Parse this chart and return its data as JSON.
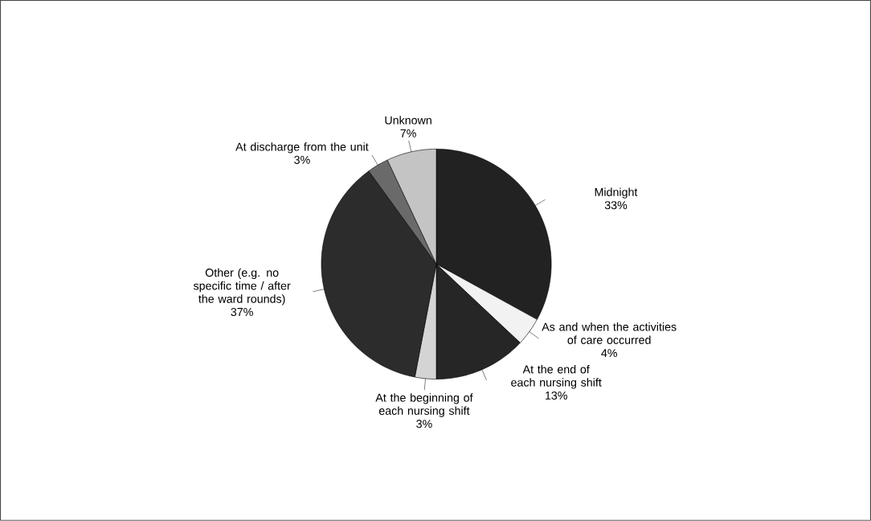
{
  "chart_data": {
    "type": "pie",
    "categories": [
      "Midnight",
      "As and when the activities of care occurred",
      "At the end of each nursing shift",
      "At the beginning of each nursing shift",
      "Other (e.g. no specific time / after the ward rounds)",
      "At discharge from the unit",
      "Unknown"
    ],
    "values": [
      33,
      4,
      13,
      3,
      37,
      3,
      7
    ],
    "value_labels": [
      "33%",
      "4%",
      "13%",
      "3%",
      "37%",
      "3%",
      "7%"
    ],
    "colors": [
      "#222222",
      "#f2f2f2",
      "#262626",
      "#d4d4d4",
      "#2c2c2c",
      "#6a6a6a",
      "#c4c4c4"
    ]
  }
}
